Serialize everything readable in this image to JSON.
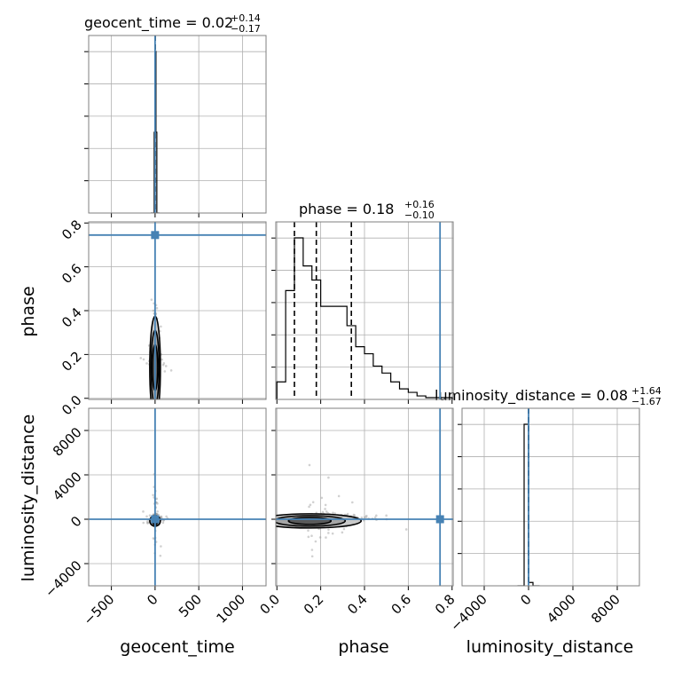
{
  "chart_data": {
    "type": "corner",
    "parameters": [
      "geocent_time",
      "phase",
      "luminosity_distance"
    ],
    "titles": [
      {
        "param": "geocent_time",
        "prefix": "geocent_time = ",
        "median": "0.02",
        "plus": "+0.14",
        "minus": "−0.17"
      },
      {
        "param": "phase",
        "prefix": "phase = ",
        "median": "0.18",
        "plus": "+0.16",
        "minus": "−0.10"
      },
      {
        "param": "luminosity_distance",
        "prefix": "luminosity_distance = ",
        "median": "0.08",
        "plus": "+1.64",
        "minus": "−1.67"
      }
    ],
    "ranges": {
      "geocent_time": [
        -760,
        1270
      ],
      "phase": [
        -0.005,
        0.805
      ],
      "luminosity_distance": [
        -6000,
        10000
      ]
    },
    "ticks": {
      "geocent_time": [
        -500,
        0,
        500,
        1000
      ],
      "phase": [
        0.0,
        0.2,
        0.4,
        0.6,
        0.8
      ],
      "luminosity_distance": [
        -4000,
        0,
        4000,
        8000
      ]
    },
    "tick_labels": {
      "geocent_time": [
        "−500",
        "0",
        "500",
        "1000"
      ],
      "phase": [
        "0.0",
        "0.2",
        "0.4",
        "0.6",
        "0.8"
      ],
      "luminosity_distance": [
        "−4000",
        "0",
        "4000",
        "8000"
      ]
    },
    "truths": {
      "geocent_time": 0.0,
      "phase": 0.745,
      "luminosity_distance": 0.0
    },
    "quantiles": {
      "geocent_time": [
        -0.15,
        0.02,
        0.16
      ],
      "phase": [
        0.08,
        0.18,
        0.34
      ],
      "luminosity_distance": [
        -1.59,
        0.08,
        1.72
      ]
    },
    "histograms": {
      "geocent_time": {
        "edges": [
          -50,
          -40,
          -30,
          -20,
          -10,
          0,
          10,
          20,
          30,
          40,
          50
        ],
        "counts": [
          0,
          0,
          0,
          0,
          0.5,
          1.0,
          0.5,
          0,
          0,
          0
        ]
      },
      "phase": {
        "edges": [
          0.0,
          0.04,
          0.08,
          0.12,
          0.16,
          0.2,
          0.24,
          0.28,
          0.32,
          0.36,
          0.4,
          0.44,
          0.48,
          0.52,
          0.56,
          0.6,
          0.64,
          0.68,
          0.72,
          0.76,
          0.8
        ],
        "counts": [
          0.1,
          0.62,
          0.92,
          0.76,
          0.68,
          0.53,
          0.53,
          0.53,
          0.42,
          0.3,
          0.26,
          0.19,
          0.15,
          0.1,
          0.06,
          0.04,
          0.02,
          0.01,
          0.01,
          0.01
        ]
      },
      "luminosity_distance": {
        "edges": [
          -1000,
          -800,
          -600,
          -400,
          -200,
          0,
          200,
          400,
          600,
          800,
          1000
        ],
        "counts": [
          0,
          0,
          0,
          0.98,
          0.98,
          0.02,
          0.02,
          0,
          0,
          0
        ]
      }
    },
    "grid": true,
    "truth_color": "#4682b4",
    "contour_fill": "#a6a6a6"
  }
}
